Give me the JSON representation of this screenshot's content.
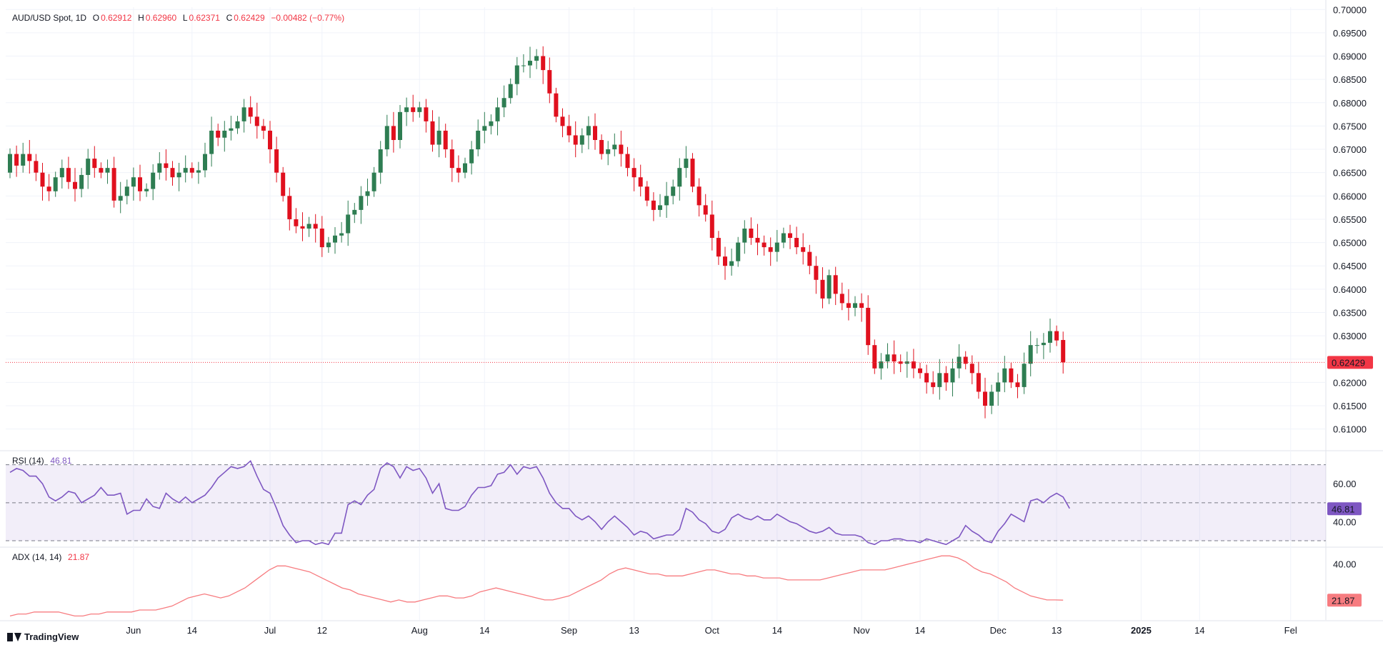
{
  "legend": {
    "symbol": "AUD/USD Spot, 1D",
    "open_label": "O",
    "open": "0.62912",
    "high_label": "H",
    "high": "0.62960",
    "low_label": "L",
    "low": "0.62371",
    "close_label": "C",
    "close": "0.62429",
    "change": "−0.00482 (−0.77%)"
  },
  "rsi_legend": {
    "name": "RSI (14)",
    "value": "46.81"
  },
  "adx_legend": {
    "name": "ADX (14, 14)",
    "value": "21.87"
  },
  "brand": {
    "name": "TradingView"
  },
  "colors": {
    "up": "#26a69a",
    "up_body": "#2e7d52",
    "down": "#f23645",
    "down_body": "#e0101e",
    "rsi": "#7e57c2",
    "adx": "#f77c80"
  },
  "chart_data": [
    {
      "type": "candlestick",
      "title": "AUD/USD Spot, 1D",
      "ylim": [
        0.6055,
        0.7005
      ],
      "y_ticks": [
        "0.70000",
        "0.69500",
        "0.69000",
        "0.68500",
        "0.68000",
        "0.67500",
        "0.67000",
        "0.66500",
        "0.66000",
        "0.65500",
        "0.65000",
        "0.64500",
        "0.64000",
        "0.63500",
        "0.63000",
        "0.62500",
        "0.62000",
        "0.61500",
        "0.61000"
      ],
      "last_price": "0.62429",
      "x_labels": [
        {
          "label": "Jun",
          "index": 19
        },
        {
          "label": "14",
          "index": 28
        },
        {
          "label": "Jul",
          "index": 40
        },
        {
          "label": "12",
          "index": 48
        },
        {
          "label": "Aug",
          "index": 63
        },
        {
          "label": "14",
          "index": 73
        },
        {
          "label": "Sep",
          "index": 86
        },
        {
          "label": "13",
          "index": 96
        },
        {
          "label": "Oct",
          "index": 108
        },
        {
          "label": "14",
          "index": 118
        },
        {
          "label": "Nov",
          "index": 131
        },
        {
          "label": "14",
          "index": 140
        },
        {
          "label": "Dec",
          "index": 152
        },
        {
          "label": "13",
          "index": 161
        },
        {
          "label": "2025",
          "index": 174
        },
        {
          "label": "14",
          "index": 183
        },
        {
          "label": "Fel",
          "index": 197
        }
      ],
      "close": [
        0.669,
        0.6665,
        0.669,
        0.6675,
        0.665,
        0.662,
        0.661,
        0.664,
        0.666,
        0.663,
        0.6615,
        0.6645,
        0.668,
        0.666,
        0.665,
        0.666,
        0.659,
        0.66,
        0.662,
        0.664,
        0.661,
        0.6615,
        0.665,
        0.667,
        0.666,
        0.664,
        0.665,
        0.666,
        0.665,
        0.6655,
        0.669,
        0.674,
        0.6725,
        0.674,
        0.6745,
        0.676,
        0.679,
        0.677,
        0.675,
        0.674,
        0.67,
        0.665,
        0.66,
        0.655,
        0.6535,
        0.653,
        0.654,
        0.653,
        0.649,
        0.65,
        0.6515,
        0.652,
        0.656,
        0.657,
        0.66,
        0.661,
        0.665,
        0.67,
        0.675,
        0.672,
        0.678,
        0.679,
        0.678,
        0.679,
        0.676,
        0.671,
        0.674,
        0.67,
        0.666,
        0.665,
        0.667,
        0.67,
        0.674,
        0.675,
        0.676,
        0.679,
        0.681,
        0.684,
        0.688,
        0.688,
        0.689,
        0.69,
        0.687,
        0.682,
        0.677,
        0.675,
        0.673,
        0.671,
        0.673,
        0.675,
        0.672,
        0.669,
        0.67,
        0.671,
        0.669,
        0.666,
        0.664,
        0.662,
        0.659,
        0.657,
        0.658,
        0.66,
        0.662,
        0.666,
        0.668,
        0.662,
        0.658,
        0.656,
        0.651,
        0.647,
        0.645,
        0.646,
        0.65,
        0.653,
        0.651,
        0.65,
        0.649,
        0.648,
        0.65,
        0.652,
        0.651,
        0.649,
        0.648,
        0.645,
        0.642,
        0.638,
        0.643,
        0.639,
        0.637,
        0.636,
        0.637,
        0.636,
        0.628,
        0.623,
        0.6245,
        0.626,
        0.6245,
        0.624,
        0.6245,
        0.623,
        0.622,
        0.62,
        0.619,
        0.622,
        0.62,
        0.623,
        0.6255,
        0.624,
        0.622,
        0.618,
        0.615,
        0.618,
        0.62,
        0.623,
        0.62,
        0.619,
        0.624,
        0.628,
        0.628,
        0.6285,
        0.631,
        0.629,
        0.6243
      ],
      "open": [
        0.665,
        0.669,
        0.6665,
        0.669,
        0.6675,
        0.665,
        0.662,
        0.661,
        0.664,
        0.666,
        0.663,
        0.6615,
        0.6645,
        0.668,
        0.666,
        0.665,
        0.666,
        0.659,
        0.66,
        0.662,
        0.664,
        0.661,
        0.6615,
        0.665,
        0.667,
        0.666,
        0.664,
        0.665,
        0.666,
        0.665,
        0.6655,
        0.669,
        0.674,
        0.6725,
        0.674,
        0.6745,
        0.676,
        0.679,
        0.677,
        0.675,
        0.674,
        0.67,
        0.665,
        0.66,
        0.655,
        0.6535,
        0.653,
        0.654,
        0.653,
        0.649,
        0.65,
        0.6515,
        0.652,
        0.656,
        0.657,
        0.66,
        0.661,
        0.665,
        0.67,
        0.675,
        0.672,
        0.678,
        0.679,
        0.678,
        0.679,
        0.676,
        0.671,
        0.674,
        0.67,
        0.666,
        0.665,
        0.667,
        0.67,
        0.674,
        0.675,
        0.676,
        0.679,
        0.681,
        0.684,
        0.688,
        0.688,
        0.689,
        0.69,
        0.687,
        0.682,
        0.677,
        0.675,
        0.673,
        0.671,
        0.673,
        0.675,
        0.672,
        0.669,
        0.67,
        0.671,
        0.669,
        0.666,
        0.664,
        0.662,
        0.659,
        0.657,
        0.658,
        0.66,
        0.662,
        0.666,
        0.668,
        0.662,
        0.658,
        0.656,
        0.651,
        0.647,
        0.645,
        0.646,
        0.65,
        0.653,
        0.651,
        0.65,
        0.649,
        0.648,
        0.65,
        0.652,
        0.651,
        0.649,
        0.648,
        0.645,
        0.642,
        0.638,
        0.643,
        0.639,
        0.637,
        0.636,
        0.637,
        0.636,
        0.628,
        0.623,
        0.6245,
        0.626,
        0.6245,
        0.624,
        0.6245,
        0.623,
        0.622,
        0.62,
        0.619,
        0.622,
        0.62,
        0.623,
        0.6255,
        0.624,
        0.622,
        0.618,
        0.615,
        0.618,
        0.62,
        0.623,
        0.62,
        0.619,
        0.624,
        0.628,
        0.628,
        0.6285,
        0.631,
        0.6291
      ]
    },
    {
      "type": "line",
      "title": "RSI (14)",
      "ylim": [
        27,
        77
      ],
      "y_ticks": [
        "60.00",
        "40.00"
      ],
      "bands": [
        30,
        50,
        70
      ],
      "last_value": "46.81",
      "values": [
        66,
        68,
        67,
        64,
        64,
        60,
        53,
        51,
        53,
        56,
        55,
        50,
        52,
        54,
        58,
        54,
        54,
        55,
        44,
        46,
        46,
        52,
        48,
        47,
        55,
        52,
        50,
        53,
        50,
        52,
        54,
        58,
        63,
        66,
        69,
        68,
        69,
        72,
        64,
        57,
        55,
        47,
        38,
        33,
        29,
        30,
        30,
        28,
        29,
        28,
        34,
        34,
        49,
        51,
        49,
        54,
        57,
        68,
        71,
        69,
        63,
        69,
        67,
        68,
        63,
        55,
        60,
        47,
        46,
        46,
        48,
        54,
        58,
        58,
        59,
        65,
        66,
        70,
        65,
        69,
        68,
        69,
        63,
        55,
        50,
        47,
        47,
        43,
        41,
        43,
        40,
        36,
        40,
        43,
        40,
        37,
        33,
        35,
        34,
        31,
        32,
        33,
        33,
        36,
        47,
        45,
        41,
        39,
        35,
        34,
        36,
        42,
        44,
        42,
        41,
        43,
        41,
        41,
        44,
        42,
        40,
        39,
        37,
        35,
        34,
        35,
        37,
        34,
        33,
        33,
        33,
        32,
        29,
        28,
        30,
        30,
        31,
        31,
        30,
        30,
        29,
        31,
        30,
        29,
        28,
        30,
        32,
        38,
        35,
        33,
        30,
        29,
        35,
        39,
        44,
        42,
        40,
        51,
        52,
        50,
        53,
        55,
        53,
        47
      ]
    },
    {
      "type": "line",
      "title": "ADX (14, 14)",
      "ylim": [
        12,
        48
      ],
      "y_ticks": [
        "40.00"
      ],
      "last_value": "21.87",
      "values": [
        14,
        15,
        15,
        16,
        16,
        16,
        16,
        15,
        14,
        14,
        15,
        15,
        16,
        16,
        16,
        16,
        17,
        17,
        17,
        18,
        19,
        21,
        23,
        24,
        25,
        24,
        23,
        24,
        26,
        28,
        31,
        34,
        37,
        39,
        39,
        38,
        37,
        36,
        34,
        32,
        30,
        28,
        27,
        25,
        24,
        23,
        22,
        21,
        22,
        21,
        21,
        22,
        23,
        24,
        24,
        23,
        23,
        24,
        26,
        27,
        28,
        27,
        26,
        25,
        24,
        23,
        22,
        22,
        23,
        24,
        26,
        28,
        30,
        32,
        35,
        37,
        38,
        37,
        36,
        35,
        35,
        34,
        34,
        34,
        35,
        36,
        37,
        37,
        36,
        35,
        35,
        34,
        34,
        33,
        33,
        33,
        32,
        32,
        32,
        32,
        32,
        33,
        34,
        35,
        36,
        37,
        37,
        37,
        37,
        38,
        39,
        40,
        41,
        42,
        43,
        44,
        44,
        43,
        41,
        38,
        36,
        35,
        33,
        31,
        28,
        26,
        24,
        23,
        22,
        22,
        21.9
      ]
    }
  ]
}
